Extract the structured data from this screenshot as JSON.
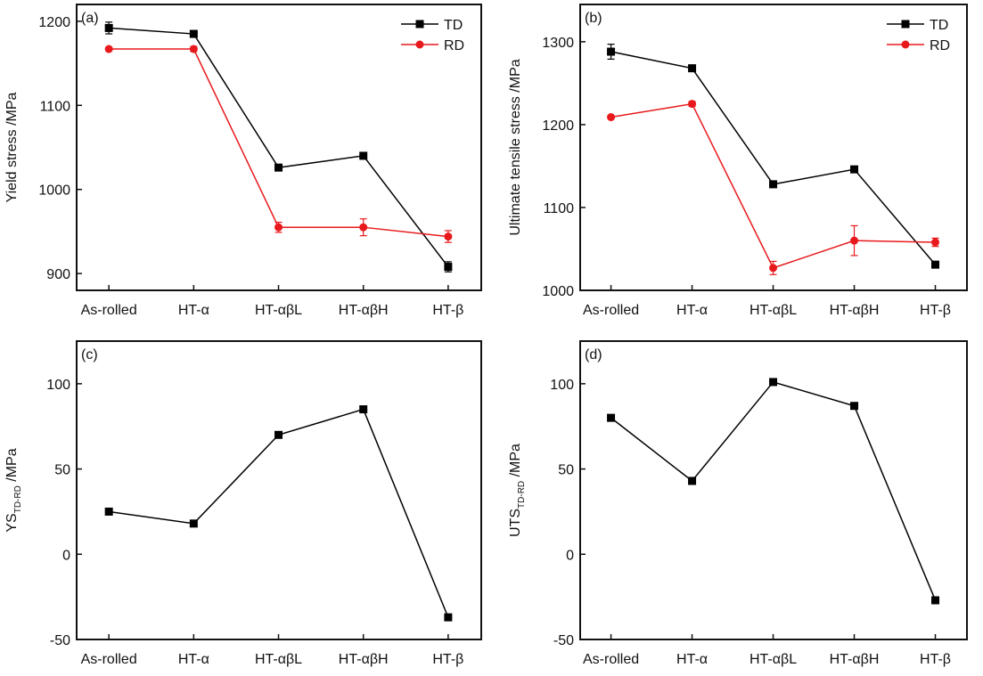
{
  "chart_data": [
    {
      "panel_label": "(a)",
      "type": "line",
      "categories": [
        "As-rolled",
        "HT-α",
        "HT-αβL",
        "HT-αβH",
        "HT-β"
      ],
      "ylabel": "Yield stress /MPa",
      "ylim": [
        880,
        1220
      ],
      "yticks": [
        900,
        1000,
        1100,
        1200
      ],
      "legend": "top-right",
      "grid": false,
      "series": [
        {
          "name": "TD",
          "color": "#000000",
          "marker": "square",
          "values": [
            1192,
            1185,
            1026,
            1040,
            908
          ],
          "errors": [
            7,
            3,
            3,
            3,
            6
          ]
        },
        {
          "name": "RD",
          "color": "#e8191c",
          "marker": "circle",
          "values": [
            1167,
            1167,
            955,
            955,
            944
          ],
          "errors": [
            2,
            3,
            6,
            10,
            7
          ]
        }
      ]
    },
    {
      "panel_label": "(b)",
      "type": "line",
      "categories": [
        "As-rolled",
        "HT-α",
        "HT-αβL",
        "HT-αβH",
        "HT-β"
      ],
      "ylabel": "Ultimate tensile stress /MPa",
      "ylim": [
        1000,
        1345
      ],
      "yticks": [
        1000,
        1100,
        1200,
        1300
      ],
      "legend": "top-right",
      "grid": false,
      "series": [
        {
          "name": "TD",
          "color": "#000000",
          "marker": "square",
          "values": [
            1288,
            1268,
            1128,
            1146,
            1031
          ],
          "errors": [
            9,
            3,
            3,
            3,
            3
          ]
        },
        {
          "name": "RD",
          "color": "#e8191c",
          "marker": "circle",
          "values": [
            1209,
            1225,
            1027,
            1060,
            1058
          ],
          "errors": [
            2,
            3,
            8,
            18,
            5
          ]
        }
      ]
    },
    {
      "panel_label": "(c)",
      "type": "line",
      "categories": [
        "As-rolled",
        "HT-α",
        "HT-αβL",
        "HT-αβH",
        "HT-β"
      ],
      "ylabel": "YS",
      "ylabel_sub": "TD-RD",
      "ylabel_unit": " /MPa",
      "ylim": [
        -50,
        125
      ],
      "yticks": [
        -50,
        0,
        50,
        100
      ],
      "grid": false,
      "series": [
        {
          "color": "#000000",
          "marker": "square",
          "values": [
            25,
            18,
            70,
            85,
            -37
          ]
        }
      ]
    },
    {
      "panel_label": "(d)",
      "type": "line",
      "categories": [
        "As-rolled",
        "HT-α",
        "HT-αβL",
        "HT-αβH",
        "HT-β"
      ],
      "ylabel": "UTS",
      "ylabel_sub": "TD-RD",
      "ylabel_unit": " /MPa",
      "ylim": [
        -50,
        125
      ],
      "yticks": [
        -50,
        0,
        50,
        100
      ],
      "grid": false,
      "series": [
        {
          "color": "#000000",
          "marker": "square",
          "values": [
            80,
            43,
            101,
            87,
            -27
          ]
        }
      ]
    }
  ]
}
